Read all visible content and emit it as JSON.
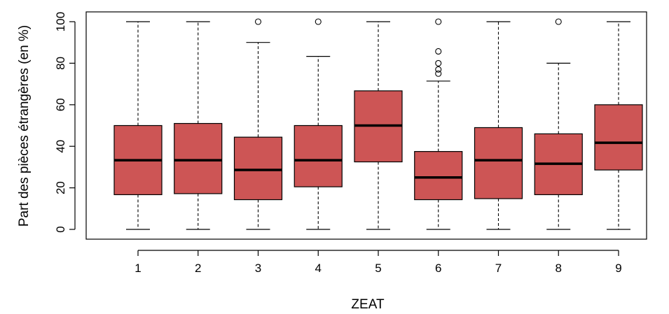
{
  "chart_data": {
    "type": "boxplot",
    "title": "",
    "xlabel": "ZEAT",
    "ylabel": "Part des pièces étrangères (en %)",
    "ylim": [
      0,
      100
    ],
    "yticks": [
      "0",
      "20",
      "40",
      "60",
      "80",
      "100"
    ],
    "categories": [
      "1",
      "2",
      "3",
      "4",
      "5",
      "6",
      "7",
      "8",
      "9"
    ],
    "box_color": "#cd5555",
    "boxes": [
      {
        "category": "1",
        "min": 0,
        "q1": 16.7,
        "median": 33.3,
        "q3": 50,
        "max": 100,
        "outliers": []
      },
      {
        "category": "2",
        "min": 0,
        "q1": 17.2,
        "median": 33.3,
        "q3": 51,
        "max": 100,
        "outliers": []
      },
      {
        "category": "3",
        "min": 0,
        "q1": 14.3,
        "median": 28.6,
        "q3": 44.4,
        "max": 90,
        "outliers": [
          100
        ]
      },
      {
        "category": "4",
        "min": 0,
        "q1": 20.5,
        "median": 33.3,
        "q3": 50,
        "max": 83.3,
        "outliers": [
          100
        ]
      },
      {
        "category": "5",
        "min": 0,
        "q1": 32.5,
        "median": 50,
        "q3": 66.7,
        "max": 100,
        "outliers": []
      },
      {
        "category": "6",
        "min": 0,
        "q1": 14.3,
        "median": 25,
        "q3": 37.5,
        "max": 71.4,
        "outliers": [
          75,
          77,
          80,
          85.7,
          100
        ]
      },
      {
        "category": "7",
        "min": 0,
        "q1": 14.8,
        "median": 33.3,
        "q3": 49,
        "max": 100,
        "outliers": []
      },
      {
        "category": "8",
        "min": 0,
        "q1": 16.7,
        "median": 31.6,
        "q3": 46,
        "max": 80,
        "outliers": [
          100
        ]
      },
      {
        "category": "9",
        "min": 0,
        "q1": 28.6,
        "median": 41.7,
        "q3": 60,
        "max": 100,
        "outliers": []
      }
    ]
  }
}
